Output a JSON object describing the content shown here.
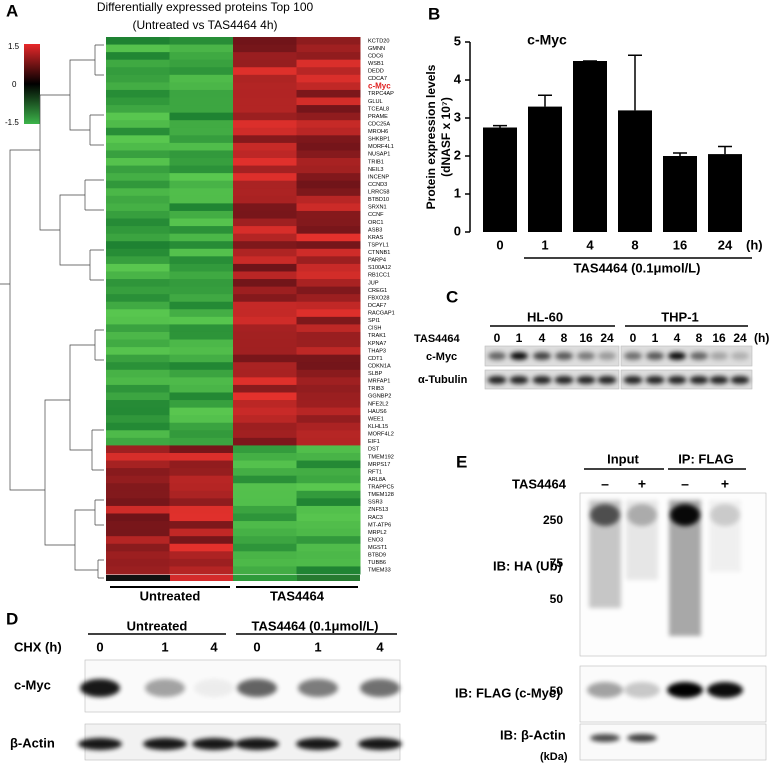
{
  "panels": {
    "A": {
      "letter": "A",
      "title": "Differentially expressed proteins Top 100",
      "subtitle": "(Untreated vs TAS4464 4h)",
      "scale_labels": [
        "1.5",
        "0",
        "-1.5"
      ],
      "genes": [
        "KCTD20",
        "GMNN",
        "CDC6",
        "WSB1",
        "DEDD",
        "CDCA7",
        "c-Myc",
        "TRPC4AP",
        "GLUL",
        "TCEAL8",
        "PRAME",
        "CDC25A",
        "MROH6",
        "SHKBP1",
        "MORF4L1",
        "NUSAP1",
        "TRIB1",
        "NEIL3",
        "INCENP",
        "CCND3",
        "LRRC58",
        "BTBD10",
        "SRXN1",
        "CCNF",
        "ORC1",
        "ASB3",
        "KRAS",
        "TSPYL1",
        "CTNNB1",
        "PARP4",
        "S100A12",
        "RB1CC1",
        "JUP",
        "CREG1",
        "FBXO28",
        "DCAF7",
        "RACGAP1",
        "SPI1",
        "CISH",
        "TRAK1",
        "KPNA7",
        "THAP3",
        "CDT1",
        "CDKN1A",
        "SLBP",
        "MRFAP1",
        "TRIB3",
        "GGNBP2",
        "NFE2L2",
        "HAUS6",
        "WEE1",
        "KLHL15",
        "MORF4L2",
        "EIF1",
        "DST",
        "TMEM192",
        "MRPS17",
        "RFT1",
        "ARL8A",
        "TRAPPC5",
        "TMEM128",
        "SSR3",
        "ZNF513",
        "RAC3",
        "MT-ATP6",
        "MRPL2",
        "ENO3",
        "MGST1",
        "BTBD9",
        "TUBB6",
        "TMEM33"
      ],
      "groups": [
        "Untreated",
        "TAS4464"
      ]
    },
    "B": {
      "letter": "B"
    },
    "C": {
      "letter": "C",
      "cell_lines": [
        "HL-60",
        "THP-1"
      ],
      "treatment": "TAS4464",
      "lanes": [
        "0",
        "1",
        "4",
        "8",
        "16",
        "24"
      ],
      "unit": "(h)",
      "rows": [
        "c-Myc",
        "α-Tubulin"
      ]
    },
    "D": {
      "letter": "D",
      "groups": [
        "Untreated",
        "TAS4464 (0.1μmol/L)"
      ],
      "treatment": "CHX (h)",
      "lanes": [
        "0",
        "1",
        "4",
        "0",
        "1",
        "4"
      ],
      "rows": [
        "c-Myc",
        "β-Actin"
      ]
    },
    "E": {
      "letter": "E",
      "groups": [
        "Input",
        "IP: FLAG"
      ],
      "treatment": "TAS4464",
      "signs": [
        "–",
        "+",
        "–",
        "+"
      ],
      "markers": [
        "250",
        "75",
        "50",
        "50"
      ],
      "blots": [
        "IB: HA (Ub)",
        "IB: FLAG (c-Myc)",
        "IB: β-Actin"
      ],
      "unit": "(kDa)"
    }
  },
  "chart_data": {
    "type": "bar",
    "title": "c-Myc",
    "y_label": [
      "Protein expression levels",
      "(dNASF x 10⁷)"
    ],
    "categories": [
      "0",
      "1",
      "4",
      "8",
      "16",
      "24"
    ],
    "x_unit": "(h)",
    "group_label": "TAS4464 (0.1μmol/L)",
    "values": [
      2.75,
      3.3,
      4.5,
      3.2,
      2.0,
      2.05
    ],
    "errors": [
      0.05,
      0.3,
      0,
      1.45,
      0.08,
      0.2
    ],
    "color": "#000000",
    "ylim": [
      0,
      5
    ],
    "yticks": [
      0,
      1,
      2,
      3,
      4,
      5
    ]
  }
}
